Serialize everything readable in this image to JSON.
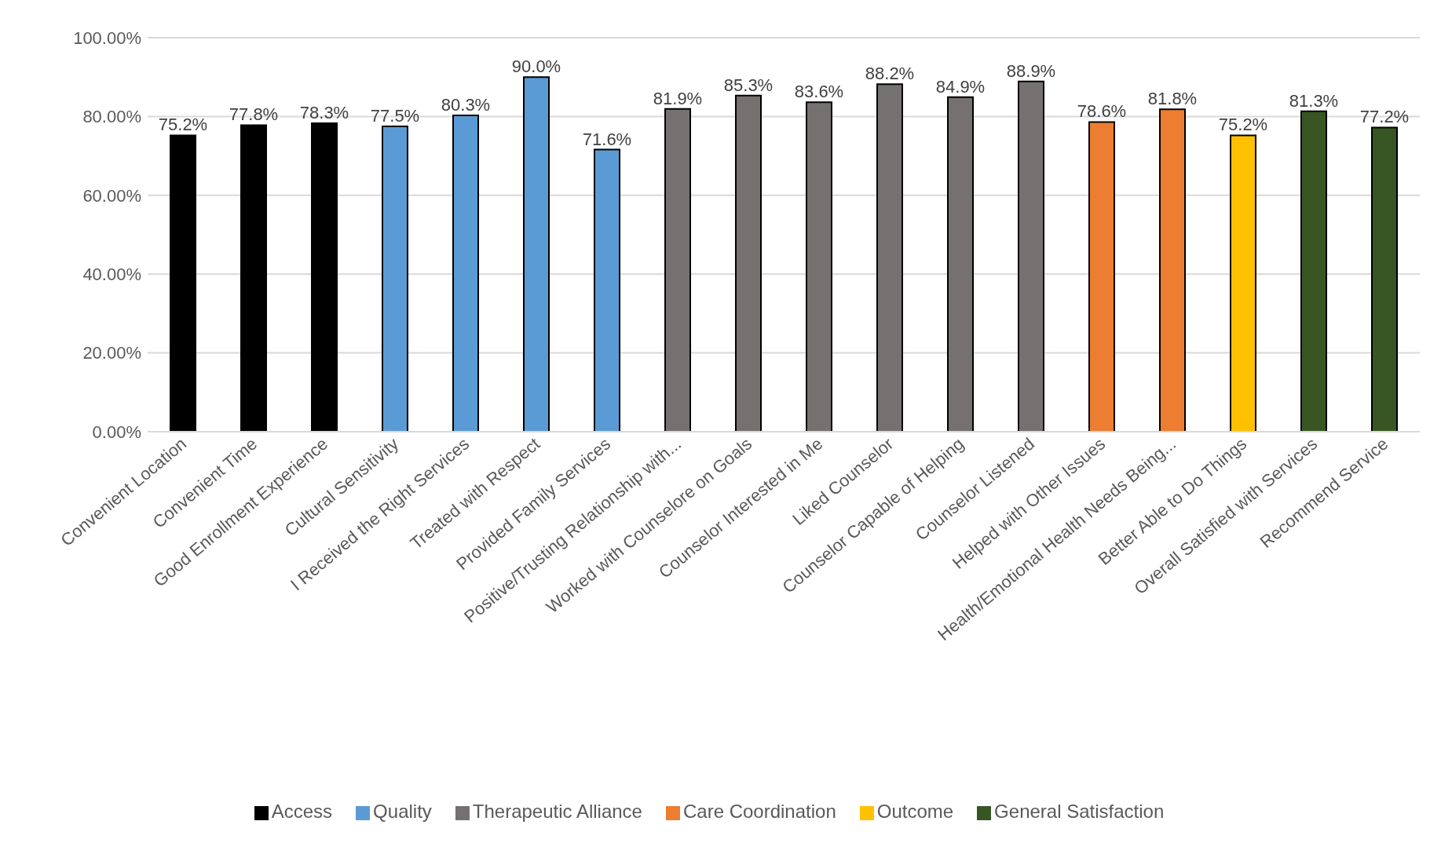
{
  "chart_data": {
    "type": "bar",
    "categories": [
      "Convenient Location",
      "Convenient Time",
      "Good Enrollment Experience",
      "Cultural Sensitivity",
      "I Received the Right Services",
      "Treated with Respect",
      "Provided Family Services",
      "Positive/Trusting Relationship with...",
      "Worked with Counselore on Goals",
      "Counselor Interested in Me",
      "Liked Counselor",
      "Counselor Capable of Helping",
      "Counselor Listened",
      "Helped with Other Issues",
      "Health/Emotional Health Needs Being...",
      "Better Able to Do Things",
      "Overall Satisfied with Services",
      "Recommend Service"
    ],
    "stacked": true,
    "series": [
      {
        "name": "Access",
        "color": "#000000",
        "values": [
          75.2,
          77.8,
          78.3,
          null,
          null,
          null,
          null,
          null,
          null,
          null,
          null,
          null,
          null,
          null,
          null,
          null,
          null,
          null
        ]
      },
      {
        "name": "Quality",
        "color": "#5b9bd5",
        "values": [
          null,
          null,
          null,
          77.5,
          80.3,
          90.0,
          71.6,
          null,
          null,
          null,
          null,
          null,
          null,
          null,
          null,
          null,
          null,
          null
        ]
      },
      {
        "name": "Therapeutic Alliance",
        "color": "#767171",
        "values": [
          null,
          null,
          null,
          null,
          null,
          null,
          null,
          81.9,
          85.3,
          83.6,
          88.2,
          84.9,
          88.9,
          null,
          null,
          null,
          null,
          null
        ]
      },
      {
        "name": "Care Coordination",
        "color": "#ed7d31",
        "values": [
          null,
          null,
          null,
          null,
          null,
          null,
          null,
          null,
          null,
          null,
          null,
          null,
          null,
          78.6,
          81.8,
          null,
          null,
          null
        ]
      },
      {
        "name": "Outcome",
        "color": "#ffc000",
        "values": [
          null,
          null,
          null,
          null,
          null,
          null,
          null,
          null,
          null,
          null,
          null,
          null,
          null,
          null,
          null,
          75.2,
          null,
          null
        ]
      },
      {
        "name": "General Satisfaction",
        "color": "#375623",
        "values": [
          null,
          null,
          null,
          null,
          null,
          null,
          null,
          null,
          null,
          null,
          null,
          null,
          null,
          null,
          null,
          null,
          81.3,
          77.2
        ]
      }
    ],
    "value_labels": [
      "75.2%",
      "77.8%",
      "78.3%",
      "77.5%",
      "80.3%",
      "90.0%",
      "71.6%",
      "81.9%",
      "85.3%",
      "83.6%",
      "88.2%",
      "84.9%",
      "88.9%",
      "78.6%",
      "81.8%",
      "75.2%",
      "81.3%",
      "77.2%"
    ],
    "ylim": [
      0,
      100
    ],
    "yticks": [
      {
        "value": 0,
        "label": "0.00%"
      },
      {
        "value": 20,
        "label": "20.00%"
      },
      {
        "value": 40,
        "label": "40.00%"
      },
      {
        "value": 60,
        "label": "60.00%"
      },
      {
        "value": 80,
        "label": "80.00%"
      },
      {
        "value": 100,
        "label": "100.00%"
      }
    ],
    "grid": "y",
    "legend": "bottom"
  }
}
